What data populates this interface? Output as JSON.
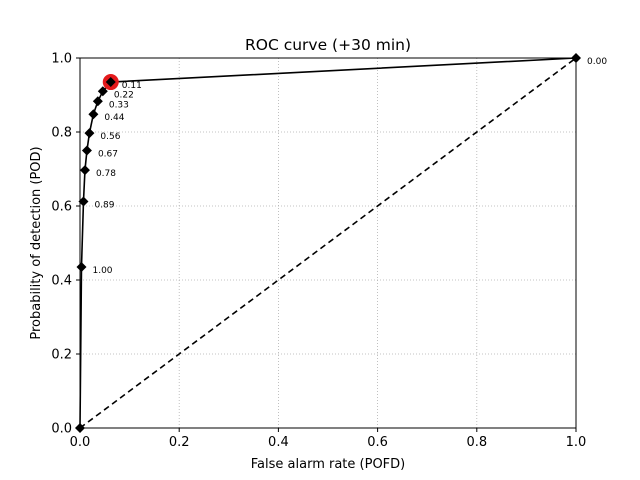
{
  "chart_data": {
    "type": "line",
    "title": "ROC curve (+30 min)",
    "xlabel": "False alarm rate (POFD)",
    "ylabel": "Probability of detection (POD)",
    "xlim": [
      0,
      1
    ],
    "ylim": [
      0,
      1
    ],
    "x_ticks": [
      "0.0",
      "0.2",
      "0.4",
      "0.6",
      "0.8",
      "1.0"
    ],
    "y_ticks": [
      "0.0",
      "0.2",
      "0.4",
      "0.6",
      "0.8",
      "1.0"
    ],
    "grid": "dotted",
    "series": [
      {
        "marker": "diamond",
        "color": "#000000",
        "points": [
          {
            "x": 0.0,
            "y": 0.0,
            "label": ""
          },
          {
            "x": 0.003,
            "y": 0.435,
            "label": "1.00"
          },
          {
            "x": 0.007,
            "y": 0.612,
            "label": "0.89"
          },
          {
            "x": 0.01,
            "y": 0.697,
            "label": "0.78"
          },
          {
            "x": 0.014,
            "y": 0.75,
            "label": "0.67"
          },
          {
            "x": 0.019,
            "y": 0.797,
            "label": "0.56"
          },
          {
            "x": 0.027,
            "y": 0.848,
            "label": "0.44"
          },
          {
            "x": 0.036,
            "y": 0.883,
            "label": "0.33"
          },
          {
            "x": 0.046,
            "y": 0.91,
            "label": "0.22"
          },
          {
            "x": 0.062,
            "y": 0.935,
            "label": "0.11"
          },
          {
            "x": 1.0,
            "y": 1.0,
            "label": "0.00"
          }
        ]
      }
    ],
    "reference_line": {
      "x": [
        0,
        1
      ],
      "y": [
        0,
        1
      ],
      "style": "dashed"
    },
    "highlight_point": {
      "x": 0.062,
      "y": 0.935,
      "color": "#e41a1c"
    }
  }
}
